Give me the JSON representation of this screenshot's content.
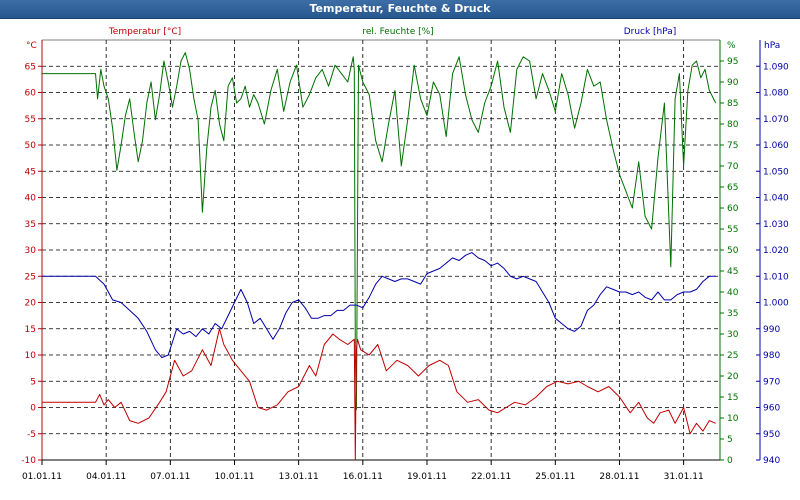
{
  "window": {
    "title": "Temperatur, Feuchte & Druck"
  },
  "chart_data": {
    "type": "line",
    "title": "Temperatur, Feuchte & Druck",
    "x_tick_labels": [
      "01.01.11",
      "04.01.11",
      "07.01.11",
      "10.01.11",
      "13.01.11",
      "16.01.11",
      "19.01.11",
      "22.01.11",
      "25.01.11",
      "28.01.11",
      "31.01.11"
    ],
    "xlim_days": [
      0,
      31.7
    ],
    "grid": true,
    "colors": {
      "temperature": "#c00000",
      "humidity": "#007000",
      "pressure": "#0000a8",
      "grid": "#000000"
    },
    "axes": {
      "temperature": {
        "label": "Temperatur [°C]",
        "unit": "°C",
        "ylim": [
          -10,
          70
        ],
        "ticks": [
          -10,
          -5,
          0,
          5,
          10,
          15,
          20,
          25,
          30,
          35,
          40,
          45,
          50,
          55,
          60,
          65
        ]
      },
      "humidity": {
        "label": "rel. Feuchte [%]",
        "unit": "%",
        "ylim": [
          0,
          100
        ],
        "ticks": [
          0,
          5,
          10,
          15,
          20,
          25,
          30,
          35,
          40,
          45,
          50,
          55,
          60,
          65,
          70,
          75,
          80,
          85,
          90,
          95
        ]
      },
      "pressure": {
        "label": "Druck [hPa]",
        "unit": "hPa",
        "ylim": [
          940,
          1100
        ],
        "ticks": [
          940,
          950,
          960,
          970,
          980,
          990,
          1000,
          1010,
          1020,
          1030,
          1040,
          1050,
          1060,
          1070,
          1080,
          1090
        ]
      }
    },
    "series": [
      {
        "name": "Temperatur [°C]",
        "axis": "temperature",
        "color": "#c00000",
        "x": [
          0,
          2.5,
          2.7,
          2.9,
          3.1,
          3.4,
          3.7,
          4.1,
          4.5,
          5.0,
          5.5,
          5.8,
          6.2,
          6.6,
          7.0,
          7.5,
          7.9,
          8.3,
          8.5,
          8.9,
          9.3,
          9.7,
          10.1,
          10.5,
          11.0,
          11.5,
          12.0,
          12.5,
          12.8,
          13.2,
          13.6,
          13.9,
          14.3,
          14.6,
          14.65,
          14.7,
          14.75,
          14.9,
          15.3,
          15.7,
          16.1,
          16.6,
          17.1,
          17.6,
          18.1,
          18.6,
          19.0,
          19.4,
          19.9,
          20.4,
          20.9,
          21.3,
          21.7,
          22.1,
          22.6,
          23.1,
          23.6,
          24.1,
          24.6,
          25.1,
          25.5,
          26.0,
          26.5,
          27.0,
          27.5,
          27.9,
          28.3,
          28.6,
          28.9,
          29.3,
          29.6,
          30.0,
          30.3,
          30.6,
          30.9,
          31.2,
          31.5
        ],
        "values": [
          1,
          1,
          2.5,
          0.5,
          1.5,
          0,
          1,
          -2.5,
          -3,
          -2,
          1,
          3,
          9,
          6,
          7,
          11,
          8,
          15,
          12,
          9,
          7,
          5,
          0,
          -0.5,
          0.5,
          3,
          4,
          8,
          6,
          12,
          14,
          13,
          12,
          13,
          -10,
          11,
          13,
          11,
          10,
          12,
          7,
          9,
          8,
          6,
          8,
          9,
          8,
          3,
          1,
          1.5,
          -0.5,
          -1,
          0,
          1,
          0.5,
          2,
          4,
          5,
          4.5,
          5,
          4,
          3,
          4,
          2,
          -1,
          1,
          -2,
          -3,
          -1,
          -0.5,
          -3,
          0,
          -5,
          -3,
          -4.5,
          -2.5,
          -3
        ]
      },
      {
        "name": "rel. Feuchte [%]",
        "axis": "humidity",
        "color": "#007000",
        "x": [
          0,
          2.5,
          2.6,
          2.75,
          2.9,
          3.1,
          3.3,
          3.5,
          3.7,
          3.9,
          4.1,
          4.3,
          4.5,
          4.7,
          4.9,
          5.1,
          5.3,
          5.5,
          5.7,
          5.9,
          6.1,
          6.3,
          6.5,
          6.7,
          6.9,
          7.1,
          7.3,
          7.5,
          7.7,
          7.9,
          8.1,
          8.3,
          8.5,
          8.7,
          8.9,
          9.1,
          9.3,
          9.5,
          9.7,
          9.9,
          10.1,
          10.4,
          10.7,
          11.0,
          11.3,
          11.6,
          11.9,
          12.2,
          12.5,
          12.8,
          13.1,
          13.4,
          13.7,
          14.0,
          14.3,
          14.55,
          14.6,
          14.65,
          14.7,
          14.8,
          15.0,
          15.3,
          15.6,
          15.9,
          16.2,
          16.5,
          16.8,
          17.1,
          17.4,
          17.7,
          18.0,
          18.3,
          18.6,
          18.9,
          19.2,
          19.5,
          19.8,
          20.1,
          20.4,
          20.7,
          21.0,
          21.3,
          21.6,
          21.9,
          22.2,
          22.5,
          22.8,
          23.1,
          23.4,
          23.7,
          24.0,
          24.3,
          24.6,
          24.9,
          25.2,
          25.5,
          25.8,
          26.1,
          26.4,
          26.7,
          27.0,
          27.3,
          27.6,
          27.9,
          28.2,
          28.5,
          28.8,
          29.1,
          29.4,
          29.6,
          29.8,
          30.0,
          30.2,
          30.4,
          30.6,
          30.8,
          31.0,
          31.2,
          31.5
        ],
        "values": [
          92,
          92,
          86,
          93,
          89,
          86,
          79,
          69,
          75,
          82,
          86,
          78,
          71,
          76,
          85,
          90,
          81,
          87,
          95,
          90,
          84,
          89,
          95,
          97,
          93,
          86,
          81,
          59,
          74,
          84,
          88,
          80,
          76,
          89,
          91,
          85,
          86,
          89,
          84,
          87,
          85,
          80,
          88,
          93,
          83,
          90,
          94,
          84,
          87,
          91,
          93,
          89,
          94,
          92,
          90,
          96,
          93,
          26,
          12,
          94,
          90,
          87,
          76,
          71,
          80,
          88,
          70,
          81,
          94,
          86,
          82,
          90,
          87,
          77,
          92,
          96,
          87,
          81,
          78,
          85,
          89,
          95,
          84,
          78,
          93,
          96,
          95,
          86,
          92,
          88,
          83,
          92,
          87,
          79,
          85,
          93,
          89,
          90,
          81,
          74,
          68,
          64,
          60,
          71,
          58,
          55,
          72,
          85,
          46,
          86,
          92,
          70,
          88,
          94,
          95,
          91,
          93,
          88,
          85
        ]
      },
      {
        "name": "Druck [hPa]",
        "axis": "pressure",
        "color": "#0000a8",
        "x": [
          0,
          2.5,
          2.9,
          3.3,
          3.7,
          4.1,
          4.5,
          4.9,
          5.3,
          5.6,
          5.9,
          6.1,
          6.3,
          6.6,
          6.9,
          7.2,
          7.5,
          7.8,
          8.1,
          8.4,
          8.7,
          9.0,
          9.3,
          9.6,
          9.9,
          10.2,
          10.5,
          10.8,
          11.1,
          11.4,
          11.7,
          12.0,
          12.3,
          12.6,
          12.9,
          13.2,
          13.5,
          13.8,
          14.1,
          14.4,
          14.7,
          15.0,
          15.3,
          15.6,
          15.9,
          16.2,
          16.5,
          16.8,
          17.1,
          17.4,
          17.7,
          18.0,
          18.3,
          18.6,
          18.9,
          19.2,
          19.5,
          19.8,
          20.1,
          20.4,
          20.7,
          21.0,
          21.3,
          21.6,
          21.9,
          22.2,
          22.5,
          22.8,
          23.1,
          23.4,
          23.7,
          24.0,
          24.3,
          24.6,
          24.9,
          25.2,
          25.5,
          25.8,
          26.1,
          26.4,
          26.7,
          27.0,
          27.3,
          27.6,
          27.9,
          28.2,
          28.5,
          28.8,
          29.1,
          29.4,
          29.7,
          30.0,
          30.3,
          30.6,
          30.9,
          31.2,
          31.5
        ],
        "values": [
          1010,
          1010,
          1007,
          1001,
          1000,
          997,
          994,
          989,
          982,
          979,
          980,
          985,
          990,
          988,
          989,
          987,
          990,
          988,
          992,
          990,
          995,
          1000,
          1005,
          1000,
          992,
          994,
          990,
          986,
          990,
          996,
          1000,
          1001,
          998,
          994,
          994,
          995,
          995,
          997,
          997,
          999,
          999,
          998,
          1002,
          1007,
          1010,
          1009,
          1008,
          1009,
          1009,
          1008,
          1007,
          1011,
          1012,
          1013,
          1015,
          1017,
          1016,
          1018,
          1019,
          1017,
          1016,
          1014,
          1015,
          1013,
          1010,
          1009,
          1010,
          1009,
          1008,
          1004,
          1000,
          994,
          992,
          990,
          989,
          991,
          997,
          999,
          1003,
          1006,
          1005,
          1004,
          1004,
          1003,
          1004,
          1002,
          1001,
          1004,
          1001,
          1001,
          1003,
          1004,
          1004,
          1005,
          1008,
          1010,
          1010
        ]
      }
    ]
  }
}
